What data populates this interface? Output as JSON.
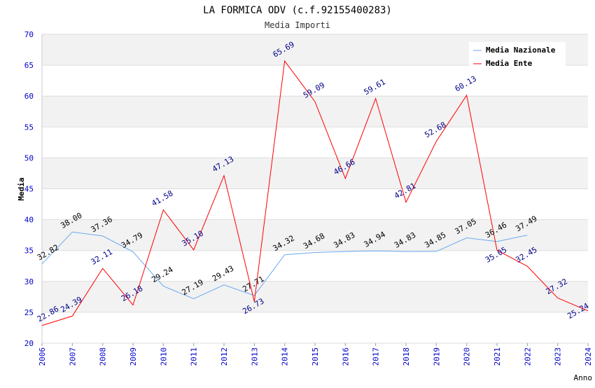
{
  "chart_data": {
    "type": "line",
    "title": "LA FORMICA ODV (c.f.92155400283)",
    "subtitle": "Media Importi",
    "xlabel": "Anno",
    "ylabel": "Media",
    "ylim": [
      20,
      70
    ],
    "yticks": [
      20,
      25,
      30,
      35,
      40,
      45,
      50,
      55,
      60,
      65,
      70
    ],
    "x": [
      "2006",
      "2007",
      "2008",
      "2009",
      "2010",
      "2011",
      "2012",
      "2013",
      "2014",
      "2015",
      "2016",
      "2017",
      "2018",
      "2019",
      "2020",
      "2021",
      "2022",
      "2023",
      "2024"
    ],
    "legend_position": "top-right",
    "series": [
      {
        "name": "Media Nazionale",
        "color": "#6aaaf0",
        "label_color": "#000000",
        "values": [
          32.82,
          38.0,
          37.36,
          34.79,
          29.24,
          27.19,
          29.43,
          27.71,
          34.32,
          34.68,
          34.83,
          34.94,
          34.83,
          34.85,
          37.05,
          36.46,
          37.49,
          null,
          null
        ]
      },
      {
        "name": "Media Ente",
        "color": "#ff0000",
        "label_color": "#00008b",
        "values": [
          22.86,
          24.39,
          32.11,
          26.18,
          41.58,
          35.1,
          47.13,
          26.73,
          65.69,
          59.09,
          46.66,
          59.61,
          42.81,
          52.68,
          60.13,
          35.05,
          32.45,
          27.32,
          25.24
        ]
      }
    ]
  }
}
